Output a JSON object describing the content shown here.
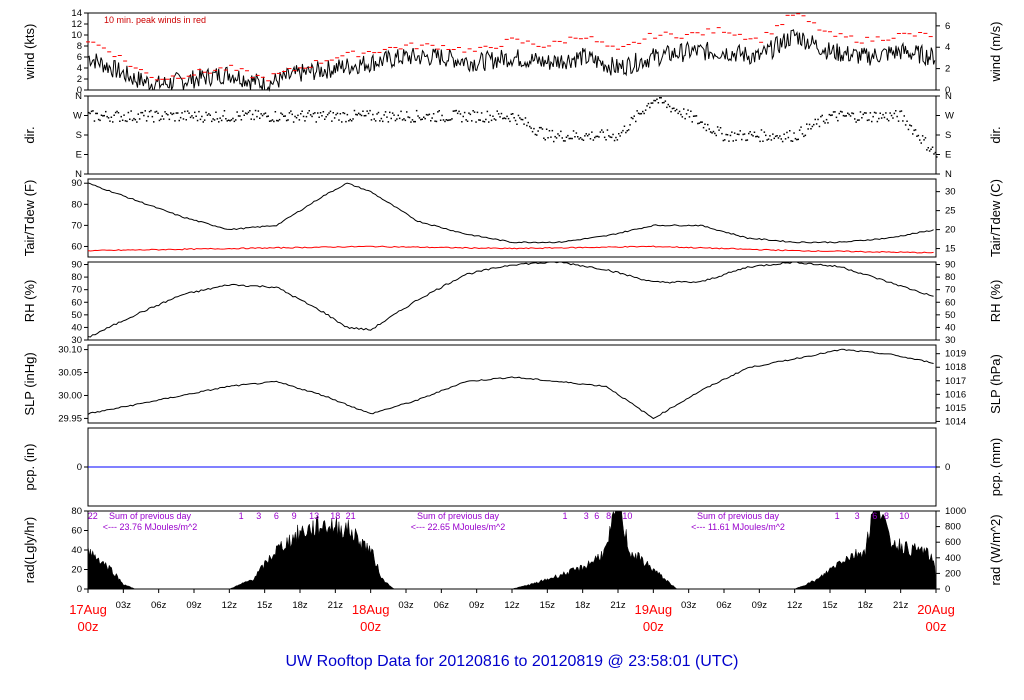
{
  "footer": {
    "prefix": "UW Rooftop Data for",
    "start": "20120816",
    "to": "to",
    "end": "20120819",
    "at": "@",
    "time": "23:58:01",
    "zone": "(UTC)"
  },
  "annotation": "10 min. peak winds in red",
  "panels": {
    "wind": {
      "ylabel_left": "wind (kts)",
      "ylabel_right": "wind (m/s)",
      "ticks_left": [
        "0",
        "2",
        "4",
        "6",
        "8",
        "10",
        "12",
        "14"
      ],
      "ticks_right": [
        "0",
        "2",
        "4",
        "6"
      ]
    },
    "dir": {
      "ylabel_left": "dir.",
      "ylabel_right": "dir.",
      "ticks_left": [
        "N",
        "E",
        "S",
        "W",
        "N"
      ],
      "ticks_right": [
        "N",
        "E",
        "S",
        "W",
        "N"
      ]
    },
    "temp": {
      "ylabel_left": "Tair/Tdew (F)",
      "ylabel_right": "Tair/Tdew (C)",
      "ticks_left": [
        "60",
        "70",
        "80",
        "90"
      ],
      "ticks_right": [
        "15",
        "20",
        "25",
        "30"
      ]
    },
    "rh": {
      "ylabel_left": "RH (%)",
      "ylabel_right": "RH (%)",
      "ticks_left": [
        "30",
        "40",
        "50",
        "60",
        "70",
        "80",
        "90"
      ],
      "ticks_right": [
        "30",
        "40",
        "50",
        "60",
        "70",
        "80",
        "90"
      ]
    },
    "slp": {
      "ylabel_left": "SLP (inHg)",
      "ylabel_right": "SLP (hPa)",
      "ticks_left": [
        "29.95",
        "30.00",
        "30.05",
        "30.10"
      ],
      "ticks_right": [
        "1014",
        "1015",
        "1016",
        "1017",
        "1018",
        "1019"
      ]
    },
    "pcp": {
      "ylabel_left": "pcp. (in)",
      "ylabel_right": "pcp. (mm)",
      "ticks_left": [
        "0"
      ],
      "ticks_right": [
        "0"
      ]
    },
    "rad": {
      "ylabel_left": "rad(Lgly/hr)",
      "ylabel_right": "rad (W/m^2)",
      "ticks_left": [
        "0",
        "20",
        "40",
        "60",
        "80"
      ],
      "ticks_right": [
        "0",
        "200",
        "400",
        "600",
        "800",
        "1000"
      ]
    }
  },
  "x_axis": {
    "hour_ticks": [
      "03z",
      "06z",
      "09z",
      "12z",
      "15z",
      "18z",
      "21z",
      "03z",
      "06z",
      "09z",
      "12z",
      "15z",
      "18z",
      "21z",
      "03z",
      "06z",
      "09z",
      "12z",
      "15z",
      "18z",
      "21z"
    ],
    "days": [
      {
        "date": "17Aug",
        "hour": "00z"
      },
      {
        "date": "18Aug",
        "hour": "00z"
      },
      {
        "date": "19Aug",
        "hour": "00z"
      },
      {
        "date": "20Aug",
        "hour": "00z"
      }
    ]
  },
  "radiation_sums": [
    {
      "title": "Sum of previous day",
      "value": "<--- 23.76 MJoules/m^2"
    },
    {
      "title": "Sum of previous day",
      "value": "<--- 22.65 MJoules/m^2"
    },
    {
      "title": "Sum of previous day",
      "value": "<--- 11.61 MJoules/m^2"
    }
  ],
  "uv_labels": [
    {
      "text": "22",
      "day": 0,
      "hour": 0.5
    },
    {
      "text": "1",
      "day": 0,
      "hour": 13
    },
    {
      "text": "3",
      "day": 0,
      "hour": 14.5
    },
    {
      "text": "6",
      "day": 0,
      "hour": 16
    },
    {
      "text": "9",
      "day": 0,
      "hour": 17.5
    },
    {
      "text": "13",
      "day": 0,
      "hour": 19.2
    },
    {
      "text": "18",
      "day": 0,
      "hour": 21
    },
    {
      "text": "21",
      "day": 0,
      "hour": 22.3
    },
    {
      "text": "1",
      "day": 1,
      "hour": 16.5
    },
    {
      "text": "3",
      "day": 1,
      "hour": 18.3
    },
    {
      "text": "6",
      "day": 1,
      "hour": 19.2
    },
    {
      "text": "8",
      "day": 1,
      "hour": 20.2
    },
    {
      "text": "10",
      "day": 1,
      "hour": 21.8
    },
    {
      "text": "1",
      "day": 2,
      "hour": 15.6
    },
    {
      "text": "3",
      "day": 2,
      "hour": 17.3
    },
    {
      "text": "6",
      "day": 2,
      "hour": 18.8
    },
    {
      "text": "8",
      "day": 2,
      "hour": 19.8
    },
    {
      "text": "10",
      "day": 2,
      "hour": 21.3
    }
  ],
  "colors": {
    "primary": "#000000",
    "peak": "#ff0000",
    "dewpoint": "#ff0000",
    "precip": "#0000ff",
    "day_label": "#ff0000",
    "sum_label": "#9900cc",
    "footer": "#0000cc"
  },
  "chart_data": [
    {
      "type": "line",
      "panel": "wind",
      "units": "kts",
      "x_units": "hours since 17Aug 00z",
      "ylim": [
        0,
        14
      ],
      "series": [
        {
          "values_x": [
            0,
            2,
            4,
            6,
            9,
            12,
            15,
            18,
            21,
            24,
            27,
            30,
            33,
            36,
            39,
            42,
            45,
            48,
            51,
            54,
            57,
            60,
            63,
            66,
            69,
            72
          ],
          "values": [
            6,
            4,
            2,
            1,
            2,
            3,
            1,
            3,
            4,
            5,
            6,
            6,
            5,
            6,
            5,
            6,
            4,
            6,
            7,
            7,
            6,
            10,
            7,
            6,
            7,
            6
          ]
        },
        {
          "name": "10 min. peak winds in red",
          "values_x": [
            0,
            2,
            4,
            6,
            9,
            12,
            15,
            18,
            21,
            24,
            27,
            30,
            33,
            36,
            39,
            42,
            45,
            48,
            51,
            54,
            57,
            60,
            63,
            66,
            69,
            72
          ],
          "values": [
            9,
            7,
            4,
            2,
            3,
            4,
            2,
            4,
            6,
            7,
            8,
            8,
            7,
            9,
            8,
            10,
            7,
            10,
            10,
            11,
            9,
            14,
            10,
            9,
            10,
            10
          ]
        }
      ]
    },
    {
      "type": "scatter",
      "panel": "dir",
      "x_units": "hours since 17Aug 00z",
      "ylim": [
        "N",
        "E",
        "S",
        "W",
        "N"
      ],
      "x": [
        0,
        3,
        6,
        9,
        12,
        15,
        18,
        21,
        24,
        27,
        30,
        33,
        36,
        39,
        42,
        45,
        48,
        51,
        54,
        57,
        60,
        63,
        66,
        69,
        72
      ],
      "values": [
        "W",
        "W",
        "W",
        "W",
        "W",
        "W",
        "W",
        "W",
        "W",
        "W",
        "W",
        "W",
        "W",
        "S",
        "S",
        "S",
        "N",
        "W",
        "S",
        "S",
        "S",
        "W",
        "W",
        "W",
        "E"
      ]
    },
    {
      "type": "line",
      "panel": "temp",
      "ylim": [
        55,
        92
      ],
      "x_units": "hours since 17Aug 00z",
      "series": [
        {
          "values_x": [
            0,
            4,
            8,
            12,
            16,
            20,
            22,
            24,
            28,
            32,
            36,
            40,
            44,
            48,
            52,
            56,
            60,
            64,
            68,
            72
          ],
          "values": [
            90,
            82,
            74,
            68,
            70,
            84,
            90,
            86,
            72,
            66,
            62,
            62,
            65,
            70,
            70,
            64,
            62,
            62,
            64,
            68
          ]
        },
        {
          "values_x": [
            0,
            12,
            24,
            36,
            48,
            60,
            72
          ],
          "values": [
            58,
            59,
            60,
            59,
            60,
            58,
            57
          ]
        }
      ]
    },
    {
      "type": "line",
      "panel": "rh",
      "ylim": [
        30,
        92
      ],
      "x_units": "hours since 17Aug 00z",
      "series": [
        {
          "values_x": [
            0,
            4,
            8,
            12,
            16,
            20,
            22,
            24,
            28,
            32,
            36,
            40,
            44,
            48,
            52,
            56,
            60,
            64,
            68,
            72
          ],
          "values": [
            32,
            50,
            66,
            74,
            72,
            52,
            40,
            38,
            62,
            82,
            90,
            92,
            86,
            76,
            76,
            88,
            92,
            88,
            76,
            64
          ]
        }
      ]
    },
    {
      "type": "line",
      "panel": "slp",
      "ylim": [
        29.94,
        30.11
      ],
      "x_units": "hours since 17Aug 00z",
      "series": [
        {
          "values_x": [
            0,
            4,
            8,
            12,
            16,
            20,
            24,
            28,
            32,
            36,
            40,
            44,
            48,
            52,
            56,
            60,
            64,
            68,
            72
          ],
          "values": [
            29.96,
            29.98,
            30.0,
            30.02,
            30.03,
            30.0,
            29.96,
            29.99,
            30.03,
            30.04,
            30.03,
            30.02,
            29.95,
            30.01,
            30.06,
            30.08,
            30.1,
            30.09,
            30.07
          ]
        }
      ]
    },
    {
      "type": "line",
      "panel": "pcp",
      "ylim": [
        -1,
        1
      ],
      "x_units": "hours since 17Aug 00z",
      "series": [
        {
          "values_x": [
            0,
            72
          ],
          "values": [
            0,
            0
          ]
        }
      ]
    },
    {
      "type": "area",
      "panel": "rad",
      "units": "Lgly/hr",
      "ylim": [
        0,
        80
      ],
      "x_units": "hours since 17Aug 00z",
      "series": [
        {
          "values_x": [
            0,
            2,
            3,
            4,
            12,
            14,
            16,
            18,
            20,
            22,
            24,
            25,
            26,
            36,
            38,
            40,
            42,
            43,
            44,
            45,
            46,
            47,
            48,
            49,
            50,
            60,
            62,
            64,
            66,
            67,
            68,
            69,
            70,
            71,
            72
          ],
          "values": [
            40,
            20,
            5,
            0,
            0,
            10,
            40,
            58,
            66,
            62,
            40,
            10,
            0,
            0,
            6,
            14,
            22,
            30,
            40,
            90,
            38,
            30,
            20,
            10,
            0,
            0,
            10,
            30,
            40,
            100,
            50,
            45,
            40,
            40,
            25
          ]
        }
      ]
    }
  ]
}
